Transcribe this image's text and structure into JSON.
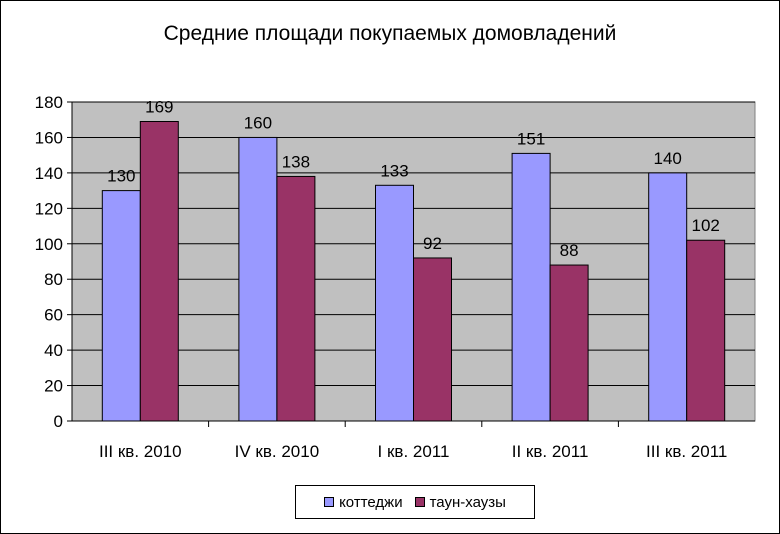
{
  "chart_data": {
    "type": "bar",
    "title": "Средние площади покупаемых домовладений",
    "categories": [
      "III кв. 2010",
      "IV кв. 2010",
      "I кв. 2011",
      "II кв. 2011",
      "III кв. 2011"
    ],
    "series": [
      {
        "name": "коттеджи",
        "values": [
          130,
          160,
          133,
          151,
          140
        ],
        "color": "#9999ff"
      },
      {
        "name": "таун-хаузы",
        "values": [
          169,
          138,
          92,
          88,
          102
        ],
        "color": "#993366"
      }
    ],
    "ylim": [
      0,
      180
    ],
    "yticks": [
      0,
      20,
      40,
      60,
      80,
      100,
      120,
      140,
      160,
      180
    ],
    "grid": true,
    "plot_background": "#c0c0c0",
    "legend_position": "bottom"
  }
}
